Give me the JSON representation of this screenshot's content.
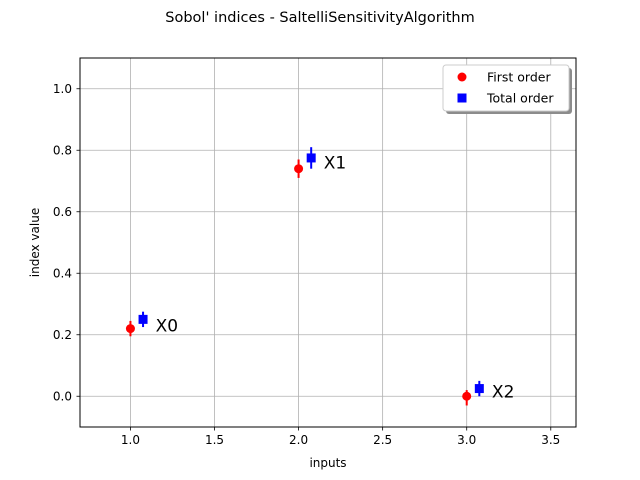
{
  "chart_data": {
    "type": "scatter",
    "title": "Sobol' indices - SaltelliSensitivityAlgorithm",
    "xlabel": "inputs",
    "ylabel": "index value",
    "xlim": [
      0.7,
      3.65
    ],
    "ylim": [
      -0.1,
      1.1
    ],
    "xticks": [
      "1.0",
      "1.5",
      "2.0",
      "2.5",
      "3.0",
      "3.5"
    ],
    "yticks": [
      "0.0",
      "0.2",
      "0.4",
      "0.6",
      "0.8",
      "1.0"
    ],
    "grid": true,
    "legend_position": "top-right",
    "series": [
      {
        "name": "First order",
        "marker": "circle",
        "color": "#ff0000",
        "x": [
          1.0,
          2.0,
          3.0
        ],
        "y": [
          0.22,
          0.74,
          0.0
        ],
        "y_lower": [
          0.195,
          0.71,
          -0.03
        ],
        "y_upper": [
          0.245,
          0.77,
          0.02
        ]
      },
      {
        "name": "Total order",
        "marker": "square",
        "color": "#0000ff",
        "x": [
          1.075,
          2.075,
          3.075
        ],
        "y": [
          0.25,
          0.775,
          0.025
        ],
        "y_lower": [
          0.225,
          0.74,
          0.0
        ],
        "y_upper": [
          0.275,
          0.81,
          0.05
        ]
      }
    ],
    "point_labels": [
      {
        "text": "X0",
        "x": 1.15,
        "y": 0.23
      },
      {
        "text": "X1",
        "x": 2.15,
        "y": 0.76
      },
      {
        "text": "X2",
        "x": 3.15,
        "y": 0.015
      }
    ]
  }
}
